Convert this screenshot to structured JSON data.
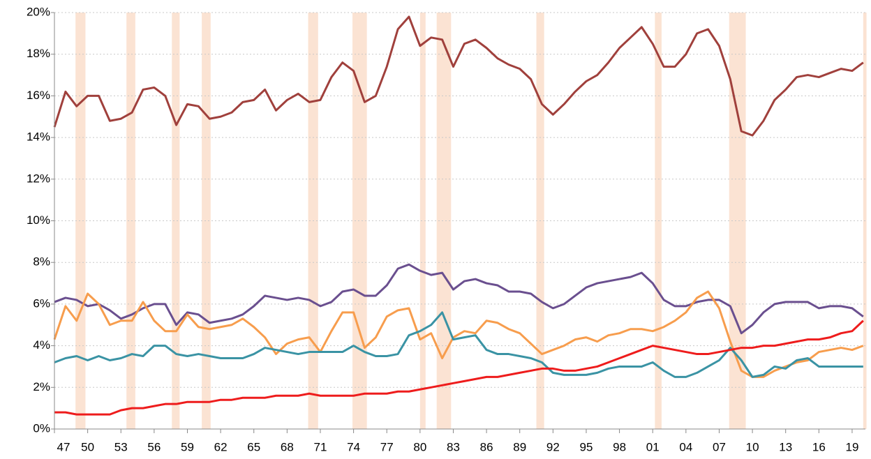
{
  "chart_data": {
    "type": "line",
    "x": [
      1947,
      1948,
      1949,
      1950,
      1951,
      1952,
      1953,
      1954,
      1955,
      1956,
      1957,
      1958,
      1959,
      1960,
      1961,
      1962,
      1963,
      1964,
      1965,
      1966,
      1967,
      1968,
      1969,
      1970,
      1971,
      1972,
      1973,
      1974,
      1975,
      1976,
      1977,
      1978,
      1979,
      1980,
      1981,
      1982,
      1983,
      1984,
      1985,
      1986,
      1987,
      1988,
      1989,
      1990,
      1991,
      1992,
      1993,
      1994,
      1995,
      1996,
      1997,
      1998,
      1999,
      2000,
      2001,
      2002,
      2003,
      2004,
      2005,
      2006,
      2007,
      2008,
      2009,
      2010,
      2011,
      2012,
      2013,
      2014,
      2015,
      2016,
      2017,
      2018,
      2019,
      2020
    ],
    "series": [
      {
        "color": "#a0403c",
        "values": [
          14.5,
          16.2,
          15.5,
          16.0,
          16.0,
          14.8,
          14.9,
          15.2,
          16.3,
          16.4,
          16.0,
          14.6,
          15.6,
          15.5,
          14.9,
          15.0,
          15.2,
          15.7,
          15.8,
          16.3,
          15.3,
          15.8,
          16.1,
          15.7,
          15.8,
          16.9,
          17.6,
          17.2,
          15.7,
          16.0,
          17.4,
          19.2,
          19.8,
          18.4,
          18.8,
          18.7,
          17.4,
          18.5,
          18.7,
          18.3,
          17.8,
          17.5,
          17.3,
          16.8,
          15.6,
          15.1,
          15.6,
          16.2,
          16.7,
          17.0,
          17.6,
          18.3,
          18.8,
          19.3,
          18.5,
          17.4,
          17.4,
          18.0,
          19.0,
          19.2,
          18.4,
          16.8,
          14.3,
          14.1,
          14.8,
          15.8,
          16.3,
          16.9,
          17.0,
          16.9,
          17.1,
          17.3,
          17.2,
          17.6
        ]
      },
      {
        "color": "#6a4f8f",
        "values": [
          6.1,
          6.3,
          6.2,
          5.9,
          6.0,
          5.7,
          5.3,
          5.5,
          5.8,
          6.0,
          6.0,
          5.0,
          5.6,
          5.5,
          5.1,
          5.2,
          5.3,
          5.5,
          5.9,
          6.4,
          6.3,
          6.2,
          6.3,
          6.2,
          5.9,
          6.1,
          6.6,
          6.7,
          6.4,
          6.4,
          6.9,
          7.7,
          7.9,
          7.6,
          7.4,
          7.5,
          6.7,
          7.1,
          7.2,
          7.0,
          6.9,
          6.6,
          6.6,
          6.5,
          6.1,
          5.8,
          6.0,
          6.4,
          6.8,
          7.0,
          7.1,
          7.2,
          7.3,
          7.5,
          7.0,
          6.2,
          5.9,
          5.9,
          6.1,
          6.2,
          6.2,
          5.9,
          4.6,
          5.0,
          5.6,
          6.0,
          6.1,
          6.1,
          6.1,
          5.8,
          5.9,
          5.9,
          5.8,
          5.4
        ]
      },
      {
        "color": "#f79d4d",
        "values": [
          4.3,
          5.9,
          5.2,
          6.5,
          6.0,
          5.0,
          5.2,
          5.2,
          6.1,
          5.2,
          4.7,
          4.7,
          5.5,
          4.9,
          4.8,
          4.9,
          5.0,
          5.3,
          4.9,
          4.4,
          3.6,
          4.1,
          4.3,
          4.4,
          3.7,
          4.7,
          5.6,
          5.6,
          3.9,
          4.4,
          5.4,
          5.7,
          5.8,
          4.3,
          4.6,
          3.4,
          4.4,
          4.7,
          4.6,
          5.2,
          5.1,
          4.8,
          4.6,
          4.1,
          3.6,
          3.8,
          4.0,
          4.3,
          4.4,
          4.2,
          4.5,
          4.6,
          4.8,
          4.8,
          4.7,
          4.9,
          5.2,
          5.6,
          6.3,
          6.6,
          5.8,
          4.2,
          2.8,
          2.5,
          2.5,
          2.8,
          3.0,
          3.2,
          3.3,
          3.7,
          3.8,
          3.9,
          3.8,
          4.0
        ]
      },
      {
        "color": "#3a93a4",
        "values": [
          3.2,
          3.4,
          3.5,
          3.3,
          3.5,
          3.3,
          3.4,
          3.6,
          3.5,
          4.0,
          4.0,
          3.6,
          3.5,
          3.6,
          3.5,
          3.4,
          3.4,
          3.4,
          3.6,
          3.9,
          3.8,
          3.7,
          3.6,
          3.7,
          3.7,
          3.7,
          3.7,
          4.0,
          3.7,
          3.5,
          3.5,
          3.6,
          4.5,
          4.7,
          5.0,
          5.6,
          4.3,
          4.4,
          4.5,
          3.8,
          3.6,
          3.6,
          3.5,
          3.4,
          3.2,
          2.7,
          2.6,
          2.6,
          2.6,
          2.7,
          2.9,
          3.0,
          3.0,
          3.0,
          3.2,
          2.8,
          2.5,
          2.5,
          2.7,
          3.0,
          3.3,
          3.9,
          3.3,
          2.5,
          2.6,
          3.0,
          2.9,
          3.3,
          3.4,
          3.0,
          3.0,
          3.0,
          3.0,
          3.0
        ]
      },
      {
        "color": "#ee1c1c",
        "values": [
          0.8,
          0.8,
          0.7,
          0.7,
          0.7,
          0.7,
          0.9,
          1.0,
          1.0,
          1.1,
          1.2,
          1.2,
          1.3,
          1.3,
          1.3,
          1.4,
          1.4,
          1.5,
          1.5,
          1.5,
          1.6,
          1.6,
          1.6,
          1.7,
          1.6,
          1.6,
          1.6,
          1.6,
          1.7,
          1.7,
          1.7,
          1.8,
          1.8,
          1.9,
          2.0,
          2.1,
          2.2,
          2.3,
          2.4,
          2.5,
          2.5,
          2.6,
          2.7,
          2.8,
          2.9,
          2.9,
          2.8,
          2.8,
          2.9,
          3.0,
          3.2,
          3.4,
          3.6,
          3.8,
          4.0,
          3.9,
          3.8,
          3.7,
          3.6,
          3.6,
          3.7,
          3.8,
          3.9,
          3.9,
          4.0,
          4.0,
          4.1,
          4.2,
          4.3,
          4.3,
          4.4,
          4.6,
          4.7,
          5.2
        ]
      }
    ],
    "shaded_spans": [
      [
        1948.9,
        1949.8
      ],
      [
        1953.5,
        1954.3
      ],
      [
        1957.6,
        1958.3
      ],
      [
        1960.3,
        1961.1
      ],
      [
        1969.9,
        1970.8
      ],
      [
        1973.9,
        1975.2
      ],
      [
        1980.0,
        1980.5
      ],
      [
        1981.5,
        1982.8
      ],
      [
        1990.5,
        1991.2
      ],
      [
        2001.2,
        2001.8
      ],
      [
        2007.9,
        2009.4
      ],
      [
        2020.0,
        2020.3
      ]
    ],
    "shading_color": "#fbe3d3",
    "xlim": [
      1947,
      2020.2
    ],
    "xticks": [
      {
        "value": 1947,
        "label": "47"
      },
      {
        "value": 1950,
        "label": "50"
      },
      {
        "value": 1953,
        "label": "53"
      },
      {
        "value": 1956,
        "label": "56"
      },
      {
        "value": 1959,
        "label": "59"
      },
      {
        "value": 1962,
        "label": "62"
      },
      {
        "value": 1965,
        "label": "65"
      },
      {
        "value": 1968,
        "label": "68"
      },
      {
        "value": 1971,
        "label": "71"
      },
      {
        "value": 1974,
        "label": "74"
      },
      {
        "value": 1977,
        "label": "77"
      },
      {
        "value": 1980,
        "label": "80"
      },
      {
        "value": 1983,
        "label": "83"
      },
      {
        "value": 1986,
        "label": "86"
      },
      {
        "value": 1989,
        "label": "89"
      },
      {
        "value": 1992,
        "label": "92"
      },
      {
        "value": 1995,
        "label": "95"
      },
      {
        "value": 1998,
        "label": "98"
      },
      {
        "value": 2001,
        "label": "01"
      },
      {
        "value": 2004,
        "label": "04"
      },
      {
        "value": 2007,
        "label": "07"
      },
      {
        "value": 2010,
        "label": "10"
      },
      {
        "value": 2013,
        "label": "13"
      },
      {
        "value": 2016,
        "label": "16"
      },
      {
        "value": 2019,
        "label": "19"
      }
    ],
    "ylim": [
      0,
      20
    ],
    "yticks": [
      {
        "value": 0,
        "label": "0%"
      },
      {
        "value": 2,
        "label": "2%"
      },
      {
        "value": 4,
        "label": "4%"
      },
      {
        "value": 6,
        "label": "6%"
      },
      {
        "value": 8,
        "label": "8%"
      },
      {
        "value": 10,
        "label": "10%"
      },
      {
        "value": 12,
        "label": "12%"
      },
      {
        "value": 14,
        "label": "14%"
      },
      {
        "value": 16,
        "label": "16%"
      },
      {
        "value": 18,
        "label": "18%"
      },
      {
        "value": 20,
        "label": "20%"
      }
    ],
    "grid": true
  }
}
